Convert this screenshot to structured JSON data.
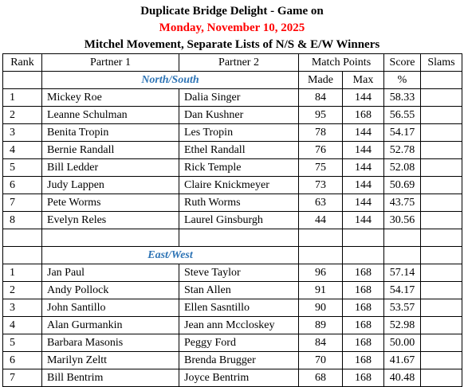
{
  "header": {
    "title": "Duplicate Bridge Delight - Game on",
    "date": "Monday, November 10, 2025",
    "subtitle": "Mitchel Movement, Separate Lists of N/S & E/W Winners"
  },
  "columns": {
    "rank": "Rank",
    "partner1": "Partner 1",
    "partner2": "Partner 2",
    "match_points": "Match Points",
    "score": "Score",
    "slams": "Slams",
    "made": "Made",
    "max": "Max",
    "percent": "%"
  },
  "sections": [
    {
      "label": "North/South",
      "rows": [
        {
          "rank": "1",
          "p1": "Mickey Roe",
          "p2": "Dalia Singer",
          "made": "84",
          "max": "144",
          "score": "58.33"
        },
        {
          "rank": "2",
          "p1": "Leanne Schulman",
          "p2": "Dan Kushner",
          "made": "95",
          "max": "168",
          "score": "56.55"
        },
        {
          "rank": "3",
          "p1": "Benita Tropin",
          "p2": "Les Tropin",
          "made": "78",
          "max": "144",
          "score": "54.17"
        },
        {
          "rank": "4",
          "p1": "Bernie Randall",
          "p2": "Ethel Randall",
          "made": "76",
          "max": "144",
          "score": "52.78"
        },
        {
          "rank": "5",
          "p1": "Bill Ledder",
          "p2": "Rick Temple",
          "made": "75",
          "max": "144",
          "score": "52.08"
        },
        {
          "rank": "6",
          "p1": "Judy Lappen",
          "p2": "Claire Knickmeyer",
          "made": "73",
          "max": "144",
          "score": "50.69"
        },
        {
          "rank": "7",
          "p1": "Pete Worms",
          "p2": "Ruth Worms",
          "made": "63",
          "max": "144",
          "score": "43.75"
        },
        {
          "rank": "8",
          "p1": "Evelyn Reles",
          "p2": "Laurel Ginsburgh",
          "made": "44",
          "max": "144",
          "score": "30.56"
        }
      ]
    },
    {
      "label": "East/West",
      "rows": [
        {
          "rank": "1",
          "p1": "Jan Paul",
          "p2": "Steve Taylor",
          "made": "96",
          "max": "168",
          "score": "57.14"
        },
        {
          "rank": "2",
          "p1": "Andy Pollock",
          "p2": "Stan Allen",
          "made": "91",
          "max": "168",
          "score": "54.17"
        },
        {
          "rank": "3",
          "p1": "John Santillo",
          "p2": "Ellen Sasntillo",
          "made": "90",
          "max": "168",
          "score": "53.57"
        },
        {
          "rank": "4",
          "p1": "Alan Gurmankin",
          "p2": "Jean ann Mccloskey",
          "made": "89",
          "max": "168",
          "score": "52.98"
        },
        {
          "rank": "5",
          "p1": "Barbara Masonis",
          "p2": "Peggy Ford",
          "made": "84",
          "max": "168",
          "score": "50.00"
        },
        {
          "rank": "6",
          "p1": "Marilyn Zeltt",
          "p2": "Brenda Brugger",
          "made": "70",
          "max": "168",
          "score": "41.67"
        },
        {
          "rank": "7",
          "p1": "Bill Bentrim",
          "p2": "Joyce Bentrim",
          "made": "68",
          "max": "168",
          "score": "40.48"
        }
      ]
    }
  ]
}
